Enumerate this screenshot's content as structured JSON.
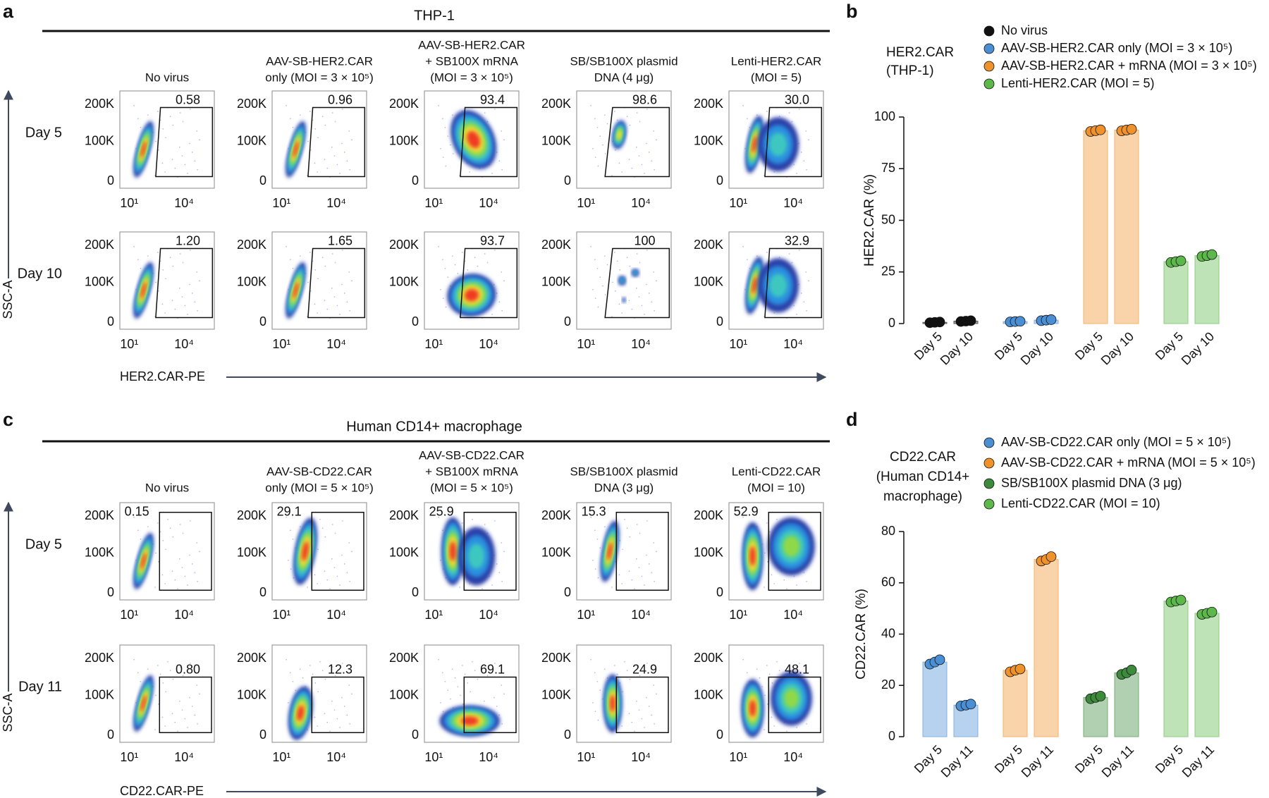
{
  "flow_panels": [
    {
      "label": "a",
      "title": "THP-1",
      "x_axis_label": "HER2.CAR-PE",
      "y_axis_label": "SSC-A",
      "columns": [
        [
          "No virus"
        ],
        [
          "AAV-SB-HER2.CAR",
          "only (MOI = 3 × 10⁵)"
        ],
        [
          "AAV-SB-HER2.CAR",
          "+ SB100X mRNA",
          "(MOI = 3 × 10⁵)"
        ],
        [
          "SB/SB100X plasmid",
          "DNA (4 μg)"
        ],
        [
          "Lenti-HER2.CAR",
          "(MOI = 5)"
        ]
      ],
      "rows": [
        {
          "label": "Day 5",
          "gates": [
            "0.58",
            "0.96",
            "93.4",
            "98.6",
            "30.0"
          ]
        },
        {
          "label": "Day 10",
          "gates": [
            "1.20",
            "1.65",
            "93.7",
            "100",
            "32.9"
          ]
        }
      ],
      "y_tick_labels": [
        "200K",
        "100K",
        "0"
      ],
      "x_tick_labels": [
        "10¹",
        "10⁴"
      ]
    },
    {
      "label": "c",
      "title": "Human CD14+ macrophage",
      "x_axis_label": "CD22.CAR-PE",
      "y_axis_label": "SSC-A",
      "columns": [
        [
          "No virus"
        ],
        [
          "AAV-SB-CD22.CAR",
          "only (MOI = 5 × 10⁵)"
        ],
        [
          "AAV-SB-CD22.CAR",
          "+ SB100X mRNA",
          "(MOI = 5 × 10⁵)"
        ],
        [
          "SB/SB100X plasmid",
          "DNA (3 μg)"
        ],
        [
          "Lenti-CD22.CAR",
          "(MOI = 10)"
        ]
      ],
      "rows": [
        {
          "label": "Day 5",
          "gates": [
            "0.15",
            "29.1",
            "25.9",
            "15.3",
            "52.9"
          ]
        },
        {
          "label": "Day 11",
          "gates": [
            "0.80",
            "12.3",
            "69.1",
            "24.9",
            "48.1"
          ]
        }
      ],
      "y_tick_labels": [
        "200K",
        "100K",
        "0"
      ],
      "x_tick_labels": [
        "10¹",
        "10⁴"
      ]
    }
  ],
  "chart_data": [
    {
      "type": "bar",
      "label": "b",
      "title": [
        "HER2.CAR",
        "(THP-1)"
      ],
      "y_label": "HER2.CAR (%)",
      "categories": [
        "Day 5",
        "Day 10"
      ],
      "ylim": [
        0,
        100
      ],
      "yticks": [
        0,
        25,
        50,
        75,
        100
      ],
      "series": [
        {
          "name": "No virus",
          "color": "#111111",
          "values": [
            0.58,
            1.2
          ],
          "replicates": [
            [
              0.4,
              0.6,
              0.75
            ],
            [
              1.0,
              1.2,
              1.4
            ]
          ]
        },
        {
          "name": "AAV-SB-HER2.CAR only (MOI = 3 × 10⁵)",
          "color": "#4a8fd4",
          "values": [
            0.96,
            1.65
          ],
          "replicates": [
            [
              0.8,
              0.96,
              1.1
            ],
            [
              1.4,
              1.65,
              1.9
            ]
          ]
        },
        {
          "name": "AAV-SB-HER2.CAR + mRNA (MOI = 3 × 10⁵)",
          "color": "#f0922b",
          "values": [
            93.4,
            93.7
          ],
          "replicates": [
            [
              93.0,
              93.4,
              93.8
            ],
            [
              93.3,
              93.7,
              94.1
            ]
          ]
        },
        {
          "name": "Lenti-HER2.CAR (MOI = 5)",
          "color": "#5cb84a",
          "values": [
            30.0,
            32.9
          ],
          "replicates": [
            [
              29.6,
              30.0,
              30.4
            ],
            [
              32.5,
              32.9,
              33.4
            ]
          ]
        }
      ]
    },
    {
      "type": "bar",
      "label": "d",
      "title": [
        "CD22.CAR",
        "(Human CD14+",
        "macrophage)"
      ],
      "y_label": "CD22.CAR (%)",
      "categories": [
        "Day 5",
        "Day 11"
      ],
      "ylim": [
        0,
        80
      ],
      "yticks": [
        0,
        20,
        40,
        60,
        80
      ],
      "series": [
        {
          "name": "AAV-SB-CD22.CAR only (MOI = 5 × 10⁵)",
          "color": "#4a8fd4",
          "values": [
            29.1,
            12.3
          ],
          "replicates": [
            [
              28.3,
              29.1,
              30.0
            ],
            [
              12.0,
              12.3,
              12.7
            ]
          ]
        },
        {
          "name": "AAV-SB-CD22.CAR + mRNA (MOI = 5 × 10⁵)",
          "color": "#f0922b",
          "values": [
            25.9,
            69.1
          ],
          "replicates": [
            [
              25.3,
              25.9,
              26.4
            ],
            [
              68.5,
              69.1,
              70.2
            ]
          ]
        },
        {
          "name": "SB/SB100X plasmid DNA (3 μg)",
          "color": "#3d8a3d",
          "values": [
            15.3,
            24.9
          ],
          "replicates": [
            [
              14.8,
              15.3,
              15.8
            ],
            [
              24.3,
              24.9,
              26.0
            ]
          ]
        },
        {
          "name": "Lenti-CD22.CAR (MOI = 10)",
          "color": "#5cb84a",
          "values": [
            52.9,
            48.1
          ],
          "replicates": [
            [
              52.5,
              52.9,
              53.3
            ],
            [
              47.7,
              48.1,
              48.6
            ]
          ]
        }
      ]
    }
  ]
}
